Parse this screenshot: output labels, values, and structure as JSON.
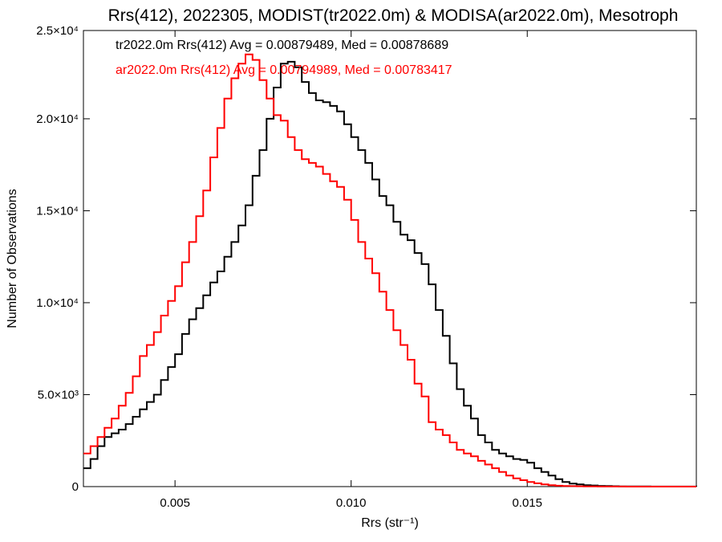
{
  "chart_data": {
    "type": "line",
    "title": "Rrs(412), 2022305, MODIST(tr2022.0m) & MODISA(ar2022.0m), Mesotroph",
    "xlabel": "Rrs (str⁻¹)",
    "ylabel": "Number of Observations",
    "xlim": [
      0.0024,
      0.0198
    ],
    "ylim": [
      0,
      24800
    ],
    "x_ticks": [
      {
        "value": 0.005,
        "label": "0.005"
      },
      {
        "value": 0.01,
        "label": "0.010"
      },
      {
        "value": 0.015,
        "label": "0.015"
      }
    ],
    "y_ticks": [
      {
        "value": 0,
        "label": "0"
      },
      {
        "value": 5000,
        "label": "5.0×10³"
      },
      {
        "value": 10000,
        "label": "1.0×10⁴"
      },
      {
        "value": 15000,
        "label": "1.5×10⁴"
      },
      {
        "value": 20000,
        "label": "2.0×10⁴"
      },
      {
        "value": 25000,
        "label": "2.5×10⁴"
      }
    ],
    "legend": [
      {
        "text": "tr2022.0m Rrs(412) Avg = 0.00879489, Med = 0.00878689",
        "color": "#000000"
      },
      {
        "text": "ar2022.0m Rrs(412) Avg = 0.00794989, Med = 0.00783417",
        "color": "#ff0000"
      }
    ],
    "series": [
      {
        "color": "#000000",
        "x": [
          0.0024,
          0.0026,
          0.0028,
          0.003,
          0.0032,
          0.0034,
          0.0036,
          0.0038,
          0.004,
          0.0042,
          0.0044,
          0.0046,
          0.0048,
          0.005,
          0.0052,
          0.0054,
          0.0056,
          0.0058,
          0.006,
          0.0062,
          0.0064,
          0.0066,
          0.0068,
          0.007,
          0.0072,
          0.0074,
          0.0076,
          0.0078,
          0.008,
          0.0082,
          0.0084,
          0.0086,
          0.0088,
          0.009,
          0.0092,
          0.0094,
          0.0096,
          0.0098,
          0.01,
          0.0102,
          0.0104,
          0.0106,
          0.0108,
          0.011,
          0.0112,
          0.0114,
          0.0116,
          0.0118,
          0.012,
          0.0122,
          0.0124,
          0.0126,
          0.0128,
          0.013,
          0.0132,
          0.0134,
          0.0136,
          0.0138,
          0.014,
          0.0142,
          0.0144,
          0.0146,
          0.0148,
          0.015,
          0.0152,
          0.0154,
          0.0156,
          0.0158,
          0.016,
          0.0162,
          0.0164,
          0.0166,
          0.0168,
          0.017,
          0.0172,
          0.0174,
          0.0176,
          0.0178,
          0.018,
          0.0185,
          0.019,
          0.0198
        ],
        "y": [
          1000,
          1500,
          2200,
          2700,
          2900,
          3100,
          3400,
          3800,
          4200,
          4600,
          5000,
          5800,
          6500,
          7200,
          8300,
          9100,
          9700,
          10400,
          11100,
          11700,
          12500,
          13300,
          14200,
          15300,
          16900,
          18300,
          20000,
          21700,
          23000,
          23100,
          22800,
          22000,
          21400,
          21000,
          20900,
          20700,
          20400,
          19700,
          19000,
          18300,
          17600,
          16700,
          15800,
          15300,
          14400,
          13700,
          13400,
          12700,
          12100,
          11000,
          9600,
          8200,
          6700,
          5300,
          4400,
          3700,
          2800,
          2400,
          2000,
          1800,
          1650,
          1500,
          1450,
          1300,
          1000,
          800,
          600,
          400,
          250,
          160,
          120,
          80,
          60,
          40,
          30,
          20,
          15,
          10,
          8,
          5,
          3,
          0
        ]
      },
      {
        "color": "#ff0000",
        "x": [
          0.0024,
          0.0026,
          0.0028,
          0.003,
          0.0032,
          0.0034,
          0.0036,
          0.0038,
          0.004,
          0.0042,
          0.0044,
          0.0046,
          0.0048,
          0.005,
          0.0052,
          0.0054,
          0.0056,
          0.0058,
          0.006,
          0.0062,
          0.0064,
          0.0066,
          0.0068,
          0.007,
          0.0072,
          0.0074,
          0.0076,
          0.0078,
          0.008,
          0.0082,
          0.0084,
          0.0086,
          0.0088,
          0.009,
          0.0092,
          0.0094,
          0.0096,
          0.0098,
          0.01,
          0.0102,
          0.0104,
          0.0106,
          0.0108,
          0.011,
          0.0112,
          0.0114,
          0.0116,
          0.0118,
          0.012,
          0.0122,
          0.0124,
          0.0126,
          0.0128,
          0.013,
          0.0132,
          0.0134,
          0.0136,
          0.0138,
          0.014,
          0.0142,
          0.0144,
          0.0146,
          0.0148,
          0.015,
          0.0152,
          0.0154,
          0.0156,
          0.0158,
          0.016,
          0.0162,
          0.0164,
          0.0166,
          0.0168,
          0.017,
          0.0172,
          0.0174,
          0.0176,
          0.0178,
          0.018,
          0.0185,
          0.019,
          0.0198
        ],
        "y": [
          1800,
          2200,
          2700,
          3200,
          3700,
          4400,
          5100,
          6000,
          7100,
          7700,
          8400,
          9300,
          10100,
          10900,
          12200,
          13300,
          14700,
          16100,
          17900,
          19500,
          21100,
          22200,
          23000,
          23500,
          23200,
          22100,
          21100,
          20200,
          19900,
          19000,
          18300,
          17800,
          17600,
          17400,
          17000,
          16600,
          16300,
          15600,
          14500,
          13300,
          12400,
          11600,
          10600,
          9600,
          8500,
          7700,
          6900,
          5600,
          4900,
          3500,
          3100,
          2800,
          2400,
          2000,
          1800,
          1650,
          1400,
          1200,
          1000,
          800,
          600,
          450,
          350,
          250,
          180,
          120,
          80,
          50,
          35,
          25,
          18,
          12,
          9,
          6,
          5,
          4,
          3,
          2,
          2,
          1,
          1,
          0
        ]
      }
    ]
  }
}
